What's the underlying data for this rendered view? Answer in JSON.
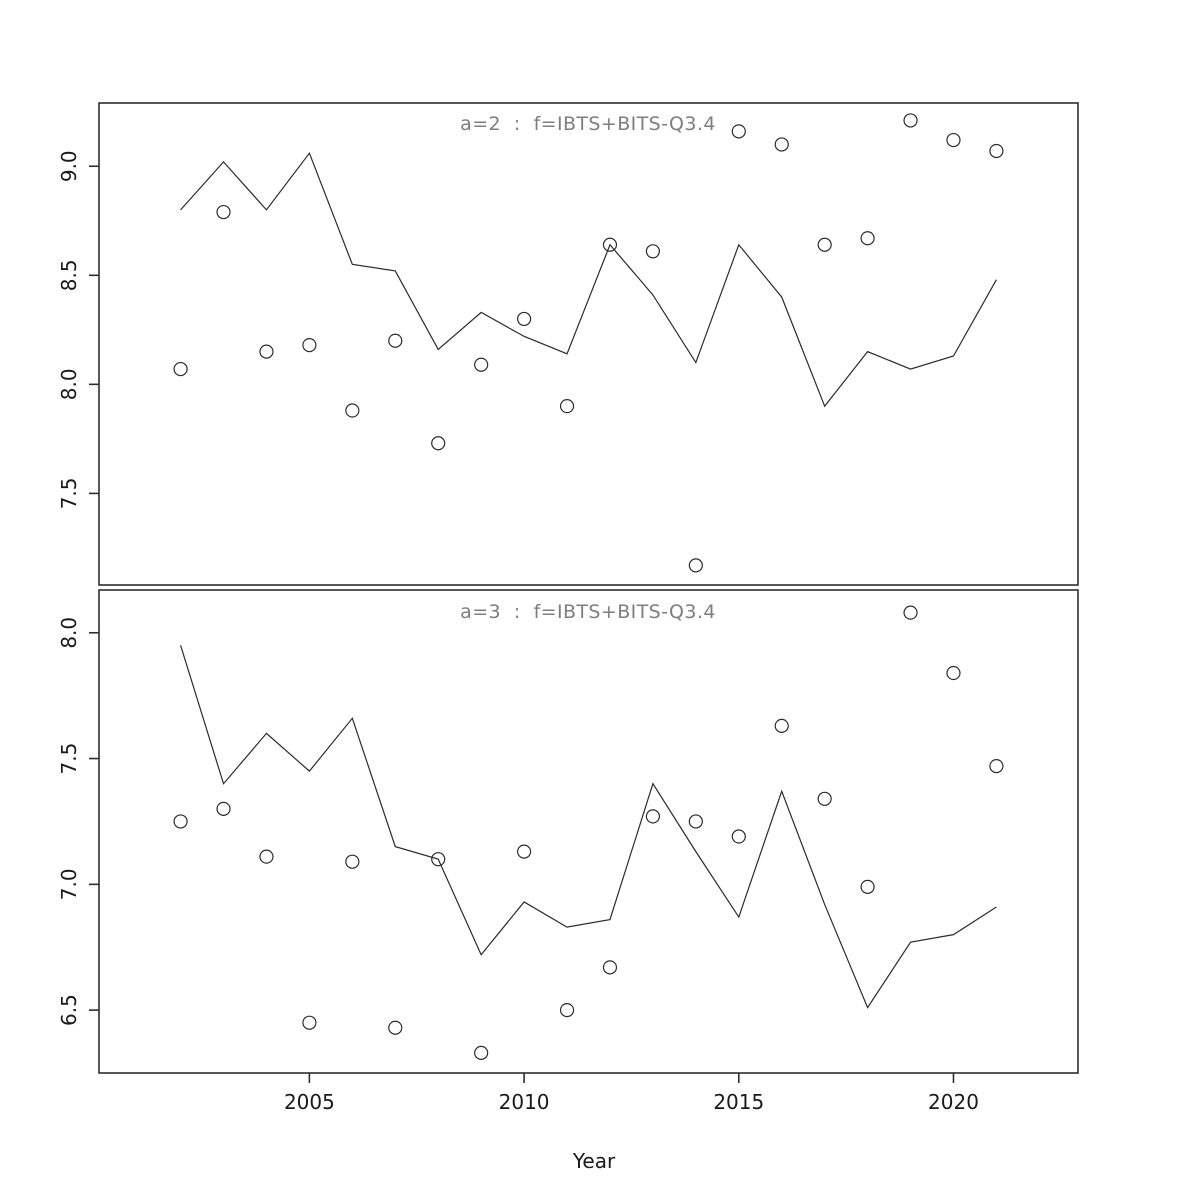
{
  "figure": {
    "background": "#ffffff",
    "frame_color": "#2e2e2e",
    "line_color": "#2b2b2b",
    "point_color": "#2b2b2b",
    "title_color": "#7e7e7e",
    "tick_color": "#2e2e2e",
    "tick_label_color": "#1a1a1a"
  },
  "x_axis": {
    "label": "Year",
    "ticks": [
      2005,
      2010,
      2015,
      2020
    ],
    "xlim": [
      2000.1,
      2022.9
    ]
  },
  "chart_data": [
    {
      "type": "line",
      "panel": "top",
      "title": "a=2  :  f=IBTS+BITS-Q3.4",
      "xlabel": "Year",
      "ylabel": "",
      "ylim": [
        7.08,
        9.29
      ],
      "y_ticks": [
        7.5,
        8.0,
        8.5,
        9.0
      ],
      "grid": false,
      "legend": "none",
      "x": [
        2002,
        2003,
        2004,
        2005,
        2006,
        2007,
        2008,
        2009,
        2010,
        2011,
        2012,
        2013,
        2014,
        2015,
        2016,
        2017,
        2018,
        2019,
        2020,
        2021
      ],
      "series": [
        {
          "name": "fitted-line",
          "type": "line",
          "marker": "none",
          "values": [
            8.8,
            9.02,
            8.8,
            9.06,
            8.55,
            8.52,
            8.16,
            8.33,
            8.22,
            8.14,
            8.64,
            8.41,
            8.1,
            8.64,
            8.4,
            7.9,
            8.15,
            8.07,
            8.13,
            8.48
          ]
        },
        {
          "name": "observed-points",
          "type": "scatter",
          "marker": "open-circle",
          "values": [
            8.07,
            8.79,
            8.15,
            8.18,
            7.88,
            8.2,
            7.73,
            8.09,
            8.3,
            7.9,
            8.64,
            8.61,
            7.17,
            9.16,
            9.1,
            8.64,
            8.67,
            9.21,
            9.12,
            9.07
          ]
        }
      ]
    },
    {
      "type": "line",
      "panel": "bottom",
      "title": "a=3  :  f=IBTS+BITS-Q3.4",
      "xlabel": "Year",
      "ylabel": "",
      "ylim": [
        6.25,
        8.17
      ],
      "y_ticks": [
        6.5,
        7.0,
        7.5,
        8.0
      ],
      "grid": false,
      "legend": "none",
      "x": [
        2002,
        2003,
        2004,
        2005,
        2006,
        2007,
        2008,
        2009,
        2010,
        2011,
        2012,
        2013,
        2014,
        2015,
        2016,
        2017,
        2018,
        2019,
        2020,
        2021
      ],
      "series": [
        {
          "name": "fitted-line",
          "type": "line",
          "marker": "none",
          "values": [
            7.95,
            7.4,
            7.6,
            7.45,
            7.66,
            7.15,
            7.1,
            6.72,
            6.93,
            6.83,
            6.86,
            7.4,
            7.13,
            6.87,
            7.37,
            6.92,
            6.51,
            6.77,
            6.8,
            6.91
          ]
        },
        {
          "name": "observed-points",
          "type": "scatter",
          "marker": "open-circle",
          "values": [
            7.25,
            7.3,
            7.11,
            6.45,
            7.09,
            6.43,
            7.1,
            6.33,
            7.13,
            6.5,
            6.67,
            7.27,
            7.25,
            7.19,
            7.63,
            7.34,
            6.99,
            8.08,
            7.84,
            7.47
          ]
        }
      ]
    }
  ]
}
